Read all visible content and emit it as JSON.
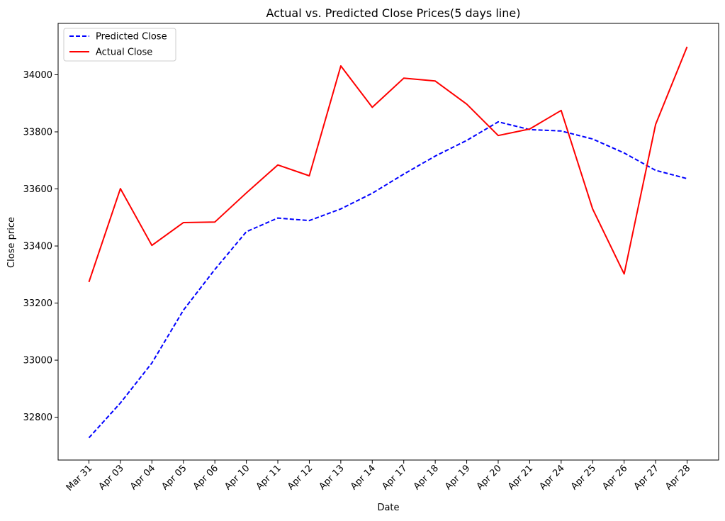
{
  "chart_data": {
    "type": "line",
    "title": "Actual vs. Predicted Close Prices(5 days line)",
    "xlabel": "Date",
    "ylabel": "Close price",
    "categories": [
      "Mar 31",
      "Apr 03",
      "Apr 04",
      "Apr 05",
      "Apr 06",
      "Apr 10",
      "Apr 11",
      "Apr 12",
      "Apr 13",
      "Apr 14",
      "Apr 17",
      "Apr 18",
      "Apr 19",
      "Apr 20",
      "Apr 21",
      "Apr 24",
      "Apr 25",
      "Apr 26",
      "Apr 27",
      "Apr 28"
    ],
    "ylim": [
      32650,
      34180
    ],
    "yticks": [
      32800,
      33000,
      33200,
      33400,
      33600,
      33800,
      34000
    ],
    "grid": false,
    "legend_position": "top-left",
    "series": [
      {
        "name": "Predicted Close",
        "color": "#0000ff",
        "style": "dashed",
        "values": [
          32728,
          32850,
          32990,
          33175,
          33318,
          33450,
          33498,
          33489,
          33530,
          33585,
          33652,
          33715,
          33770,
          33835,
          33808,
          33803,
          33775,
          33726,
          33665,
          33636
        ]
      },
      {
        "name": "Actual Close",
        "color": "#ff0000",
        "style": "solid",
        "values": [
          33274,
          33601,
          33402,
          33482,
          33484,
          33586,
          33684,
          33646,
          34031,
          33886,
          33988,
          33978,
          33897,
          33787,
          33810,
          33875,
          33530,
          33302,
          33826,
          34098
        ]
      }
    ]
  }
}
